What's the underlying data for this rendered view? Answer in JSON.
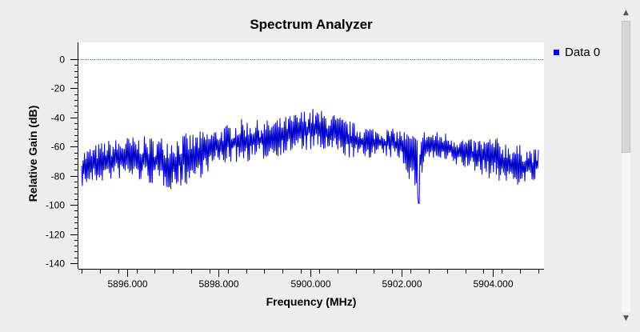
{
  "window": {
    "title": "Spectrum Analyzer"
  },
  "legend": {
    "label": "Data 0",
    "color": "#0000ff"
  },
  "scrollbar": {
    "up_icon": "scroll-up-icon",
    "down_icon": "scroll-down-icon"
  },
  "colors": {
    "trace": "#0000cc",
    "reference": "#008080",
    "plot_bg": "#ffffff",
    "window_bg": "#ededed"
  },
  "chart_data": {
    "type": "line",
    "title": "Spectrum Analyzer",
    "xlabel": "Frequency (MHz)",
    "ylabel": "Relative Gain (dB)",
    "xlim": [
      5895.0,
      5905.0
    ],
    "ylim": [
      -140,
      0
    ],
    "x_ticks": [
      5896,
      5898,
      5900,
      5902,
      5904
    ],
    "x_tick_labels": [
      "5896.000",
      "5898.000",
      "5900.000",
      "5902.000",
      "5904.000"
    ],
    "y_ticks": [
      0,
      -20,
      -40,
      -60,
      -80,
      -100,
      -120,
      -140
    ],
    "y_tick_labels": [
      "0",
      "-20",
      "-40",
      "-60",
      "-80",
      "-100",
      "-120",
      "-140"
    ],
    "reference_line": {
      "y": 0,
      "style": "dotted"
    },
    "grid": false,
    "legend_position": "right",
    "series": [
      {
        "name": "Data 0",
        "color": "#0000ff",
        "description_of_shape": "noisy spectrum, upper envelope rising from about -55 dB at 5895 MHz to about -32 dB near 5900 MHz and back to about -60 dB at 5905 MHz",
        "x": [
          5895.0,
          5895.5,
          5896.0,
          5896.5,
          5897.0,
          5897.5,
          5898.0,
          5898.5,
          5899.0,
          5899.5,
          5900.0,
          5900.5,
          5901.0,
          5901.5,
          5902.0,
          5902.38,
          5902.5,
          5903.0,
          5903.5,
          5904.0,
          5904.5,
          5905.0
        ],
        "upper": [
          -62,
          -56,
          -53,
          -53,
          -52,
          -50,
          -47,
          -41,
          -42,
          -39,
          -33,
          -37,
          -44,
          -47,
          -48,
          -52,
          -49,
          -50,
          -55,
          -53,
          -58,
          -62
        ],
        "lower": [
          -88,
          -84,
          -82,
          -86,
          -90,
          -84,
          -72,
          -71,
          -69,
          -65,
          -63,
          -65,
          -69,
          -67,
          -69,
          -99,
          -68,
          -72,
          -76,
          -83,
          -87,
          -84
        ]
      }
    ]
  }
}
